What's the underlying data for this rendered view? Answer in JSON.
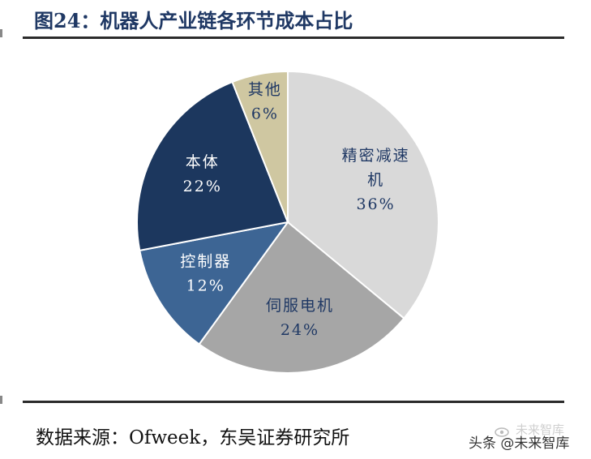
{
  "header": {
    "title": "图24：机器人产业链各环节成本占比"
  },
  "footer": {
    "source": "数据来源：Ofweek，东吴证券研究所"
  },
  "watermark": {
    "line1": "未来智库",
    "line2": "头条 @未来智库",
    "icon": "eye-icon"
  },
  "chart_data": {
    "type": "pie",
    "title": "图24：机器人产业链各环节成本占比",
    "start_angle_deg": 0,
    "direction": "clockwise",
    "slices": [
      {
        "label": "精密减速机",
        "label_lines": [
          "精密减速",
          "机"
        ],
        "value": 36,
        "display": "36%",
        "color": "#d9d9d9",
        "text_color": "#1f3864"
      },
      {
        "label": "伺服电机",
        "label_lines": [
          "伺服电机"
        ],
        "value": 24,
        "display": "24%",
        "color": "#a6a6a6",
        "text_color": "#1f3864"
      },
      {
        "label": "控制器",
        "label_lines": [
          "控制器"
        ],
        "value": 12,
        "display": "12%",
        "color": "#3d6594",
        "text_color": "#ffffff"
      },
      {
        "label": "本体",
        "label_lines": [
          "本体"
        ],
        "value": 22,
        "display": "22%",
        "color": "#1c375e",
        "text_color": "#ffffff"
      },
      {
        "label": "其他",
        "label_lines": [
          "其他"
        ],
        "value": 6,
        "display": "6%",
        "color": "#cfc7a1",
        "text_color": "#1f3864"
      }
    ]
  }
}
